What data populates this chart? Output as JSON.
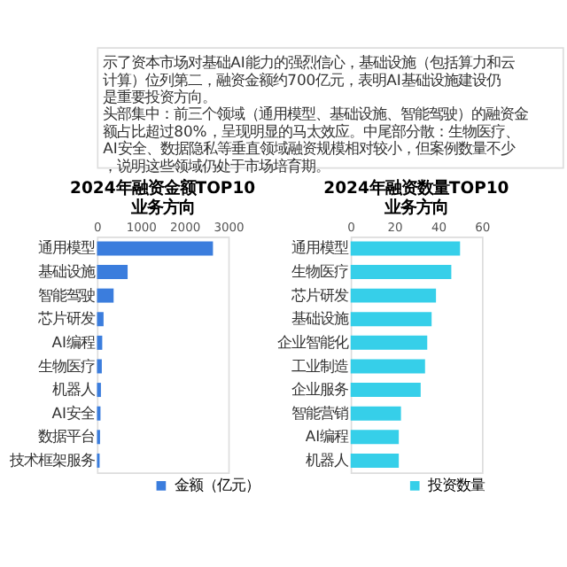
{
  "chart_data": [
    {
      "type": "other",
      "annotations": [
        "示了资本市场对基础AI能力的强烈信心，基础设施（包括算力和云计算）位列第二，融资金额约700亿元，表明AI基础设施建设仍是重要投资方向。",
        "头部集中：前三个领域（通用模型、基础设施、智能驾驶）的融资金额占比超过80%，呈现明显的马太效应。中尾部分散：生物医疗、AI安全、数据隐私等垂直领域融资规模相对较小，但案例数量不少，说明这些领域仍处于市场培育期。"
      ]
    },
    {
      "type": "bar",
      "orientation": "horizontal",
      "title": "2024年融资金额TOP10\n业务方向",
      "categories": [
        "通用模型",
        "基础设施",
        "智能驾驶",
        "芯片研发",
        "AI编程",
        "生物医疗",
        "机器人",
        "AI安全",
        "数据平台",
        "技术框架服务"
      ],
      "series": [
        {
          "name": "金额（亿元）",
          "color": "#3b7ddd",
          "values": [
            2650,
            700,
            380,
            150,
            120,
            110,
            90,
            80,
            70,
            60
          ]
        }
      ],
      "xlim": [
        0,
        3000
      ],
      "xticks": [
        0,
        1000,
        2000,
        3000
      ],
      "legend": "bottom right",
      "grid": false
    },
    {
      "type": "bar",
      "orientation": "horizontal",
      "title": "2024年融资数量TOP10\n业务方向",
      "categories": [
        "通用模型",
        "生物医疗",
        "芯片研发",
        "基础设施",
        "企业智能化",
        "工业制造",
        "企业服务",
        "智能营销",
        "AI编程",
        "机器人"
      ],
      "series": [
        {
          "name": "投资数量",
          "color": "#36cfe9",
          "values": [
            50,
            46,
            39,
            37,
            35,
            34,
            32,
            23,
            22,
            22
          ]
        }
      ],
      "xlim": [
        0,
        60
      ],
      "xticks": [
        0,
        20,
        40,
        60
      ],
      "legend": "bottom right",
      "grid": false
    }
  ]
}
